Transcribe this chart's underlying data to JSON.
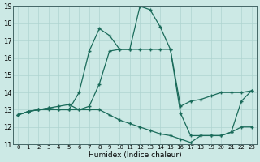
{
  "xlabel": "Humidex (Indice chaleur)",
  "background_color": "#cce9e5",
  "grid_color": "#aed4d0",
  "line_color": "#1a6b5a",
  "xlim": [
    -0.5,
    23.5
  ],
  "ylim": [
    11,
    19
  ],
  "xticks": [
    0,
    1,
    2,
    3,
    4,
    5,
    6,
    7,
    8,
    9,
    10,
    11,
    12,
    13,
    14,
    15,
    16,
    17,
    18,
    19,
    20,
    21,
    22,
    23
  ],
  "yticks": [
    11,
    12,
    13,
    14,
    15,
    16,
    17,
    18,
    19
  ],
  "series": [
    {
      "x": [
        0,
        1,
        2,
        3,
        4,
        5,
        6,
        7,
        8,
        9,
        10,
        11,
        12,
        13,
        14,
        15,
        16,
        17,
        18,
        19,
        20,
        21,
        22,
        23
      ],
      "y": [
        12.7,
        12.9,
        13.0,
        13.1,
        13.2,
        13.3,
        13.0,
        13.2,
        14.5,
        16.4,
        16.5,
        16.5,
        16.5,
        16.5,
        16.5,
        16.5,
        13.2,
        13.5,
        13.6,
        13.8,
        14.0,
        14.0,
        14.0,
        14.1
      ]
    },
    {
      "x": [
        0,
        1,
        2,
        3,
        4,
        5,
        6,
        7,
        8,
        9,
        10,
        11,
        12,
        13,
        14,
        15,
        16,
        17,
        18,
        19,
        20,
        21,
        22,
        23
      ],
      "y": [
        12.7,
        12.9,
        13.0,
        13.1,
        13.0,
        13.0,
        14.0,
        16.4,
        17.7,
        17.3,
        16.5,
        16.5,
        19.0,
        18.8,
        17.8,
        16.5,
        12.8,
        11.5,
        11.5,
        11.5,
        11.5,
        11.7,
        13.5,
        14.1
      ]
    },
    {
      "x": [
        0,
        1,
        2,
        3,
        4,
        5,
        6,
        7,
        8,
        9,
        10,
        11,
        12,
        13,
        14,
        15,
        16,
        17,
        18,
        19,
        20,
        21,
        22,
        23
      ],
      "y": [
        12.7,
        12.9,
        13.0,
        13.0,
        13.0,
        13.0,
        13.0,
        13.0,
        13.0,
        12.7,
        12.4,
        12.2,
        12.0,
        11.8,
        11.6,
        11.5,
        11.3,
        11.1,
        11.5,
        11.5,
        11.5,
        11.7,
        12.0,
        12.0
      ]
    }
  ]
}
